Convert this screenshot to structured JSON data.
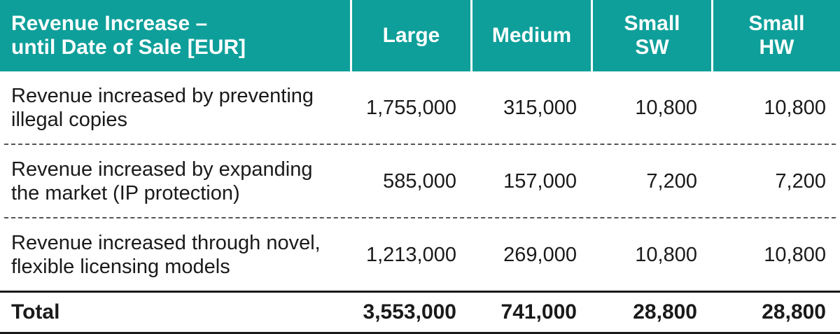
{
  "header": {
    "label_line1": "Revenue Increase –",
    "label_line2": "until Date of Sale [EUR]",
    "large": "Large",
    "medium": "Medium",
    "small_sw_line1": "Small",
    "small_sw_line2": "SW",
    "small_hw_line1": "Small",
    "small_hw_line2": "HW"
  },
  "rows": [
    {
      "label_line1": "Revenue increased by preventing",
      "label_line2": "illegal copies",
      "large": "1,755,000",
      "medium": "315,000",
      "small_sw": "10,800",
      "small_hw": "10,800"
    },
    {
      "label_line1": "Revenue increased by expanding",
      "label_line2": "the market (IP protection)",
      "large": "585,000",
      "medium": "157,000",
      "small_sw": "7,200",
      "small_hw": "7,200"
    },
    {
      "label_line1": "Revenue increased through novel,",
      "label_line2": "flexible licensing models",
      "large": "1,213,000",
      "medium": "269,000",
      "small_sw": "10,800",
      "small_hw": "10,800"
    }
  ],
  "total": {
    "label": "Total",
    "large": "3,553,000",
    "medium": "741,000",
    "small_sw": "28,800",
    "small_hw": "28,800"
  },
  "colors": {
    "header_bg": "#0e9f9a",
    "header_text": "#ffffff",
    "body_text": "#1a1a1a"
  }
}
